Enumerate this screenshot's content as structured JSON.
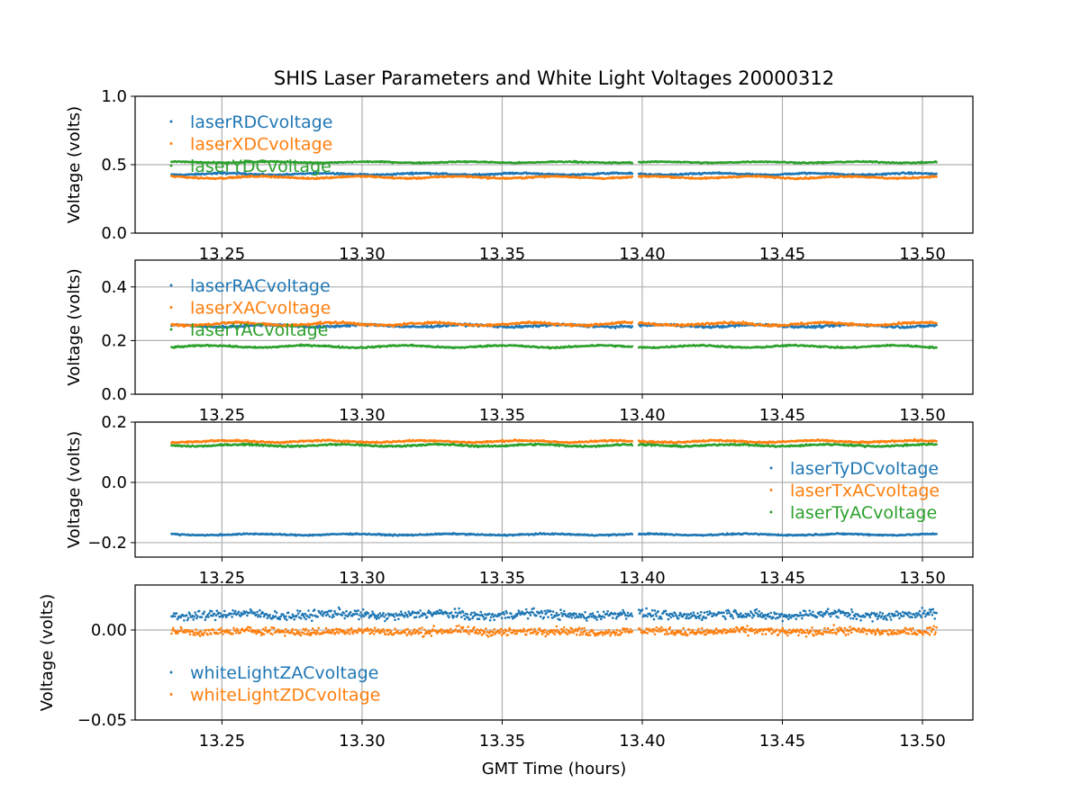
{
  "chart_data": {
    "type": "scatter",
    "title": "SHIS Laser Parameters and White Light Voltages 20000312",
    "xlabel": "GMT Time (hours)",
    "xlim": [
      13.219,
      13.518
    ],
    "xticks": [
      "13.25",
      "13.30",
      "13.35",
      "13.40",
      "13.45",
      "13.50"
    ],
    "xtick_values": [
      13.25,
      13.3,
      13.35,
      13.4,
      13.45,
      13.5
    ],
    "x_data_range": [
      13.232,
      13.505
    ],
    "x_gap": [
      13.3965,
      13.3985
    ],
    "grid": true,
    "panels": [
      {
        "ylabel": "Voltage (volts)",
        "ylim": [
          0.0,
          1.0
        ],
        "yticks": [
          "0.0",
          "0.5",
          "1.0"
        ],
        "ytick_values": [
          0.0,
          0.5,
          1.0
        ],
        "legend": "upper-left",
        "series": [
          {
            "name": "laserRDCvoltage",
            "color": "#1f77b4",
            "level": 0.432,
            "noise": 0.004,
            "wobble": 0.006
          },
          {
            "name": "laserXDCvoltage",
            "color": "#ff7f0e",
            "level": 0.408,
            "noise": 0.004,
            "wobble": 0.007
          },
          {
            "name": "laserYDCvoltage",
            "color": "#2ca02c",
            "level": 0.518,
            "noise": 0.003,
            "wobble": 0.004
          }
        ]
      },
      {
        "ylabel": "Voltage (volts)",
        "ylim": [
          0.0,
          0.5
        ],
        "yticks": [
          "0.0",
          "0.2",
          "0.4"
        ],
        "ytick_values": [
          0.0,
          0.2,
          0.4
        ],
        "legend": "upper-left",
        "series": [
          {
            "name": "laserRACvoltage",
            "color": "#1f77b4",
            "level": 0.255,
            "noise": 0.003,
            "wobble": 0.004
          },
          {
            "name": "laserXACvoltage",
            "color": "#ff7f0e",
            "level": 0.262,
            "noise": 0.003,
            "wobble": 0.005
          },
          {
            "name": "laserYACvoltage",
            "color": "#2ca02c",
            "level": 0.178,
            "noise": 0.002,
            "wobble": 0.004
          }
        ]
      },
      {
        "ylabel": "Voltage (volts)",
        "ylim": [
          -0.248,
          0.2
        ],
        "yticks": [
          "−0.2",
          "0.0",
          "0.2"
        ],
        "ytick_values": [
          -0.2,
          0.0,
          0.2
        ],
        "legend": "center-right",
        "series": [
          {
            "name": "laserTyDCvoltage",
            "color": "#1f77b4",
            "level": -0.173,
            "noise": 0.0015,
            "wobble": 0.002
          },
          {
            "name": "laserTxACvoltage",
            "color": "#ff7f0e",
            "level": 0.136,
            "noise": 0.002,
            "wobble": 0.003
          },
          {
            "name": "laserTyACvoltage",
            "color": "#2ca02c",
            "level": 0.123,
            "noise": 0.002,
            "wobble": 0.003
          }
        ]
      },
      {
        "ylabel": "Voltage (volts)",
        "ylim": [
          -0.05,
          0.025
        ],
        "yticks": [
          "−0.05",
          "0.00"
        ],
        "ytick_values": [
          -0.05,
          0.0
        ],
        "legend": "lower-left",
        "series": [
          {
            "name": "whiteLightZACvoltage",
            "color": "#1f77b4",
            "level": 0.0085,
            "noise": 0.0018,
            "wobble": 0.0008
          },
          {
            "name": "whiteLightZDCvoltage",
            "color": "#ff7f0e",
            "level": -0.0008,
            "noise": 0.0015,
            "wobble": 0.0005
          }
        ]
      }
    ]
  }
}
